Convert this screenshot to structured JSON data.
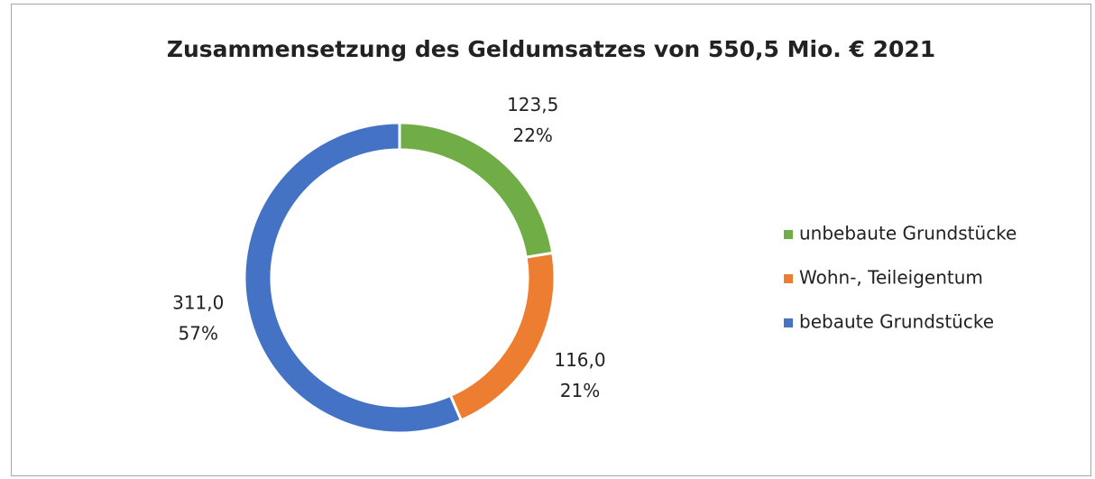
{
  "chart_data": {
    "type": "donut",
    "title": "Zusammensetzung des Geldumsatzes von 550,5 Mio. € 2021",
    "categories": [
      "unbebaute Grundstücke",
      "Wohn-, Teileigentum",
      "bebaute Grundstücke"
    ],
    "values": [
      123.5,
      116.0,
      311.0
    ],
    "value_labels": [
      "123,5",
      "116,0",
      "311,0"
    ],
    "percentages": [
      22,
      21,
      57
    ],
    "percentage_labels": [
      "22%",
      "21%",
      "57%"
    ],
    "colors": [
      "#70ad47",
      "#ed7d31",
      "#4472c4"
    ],
    "legend": "right"
  }
}
